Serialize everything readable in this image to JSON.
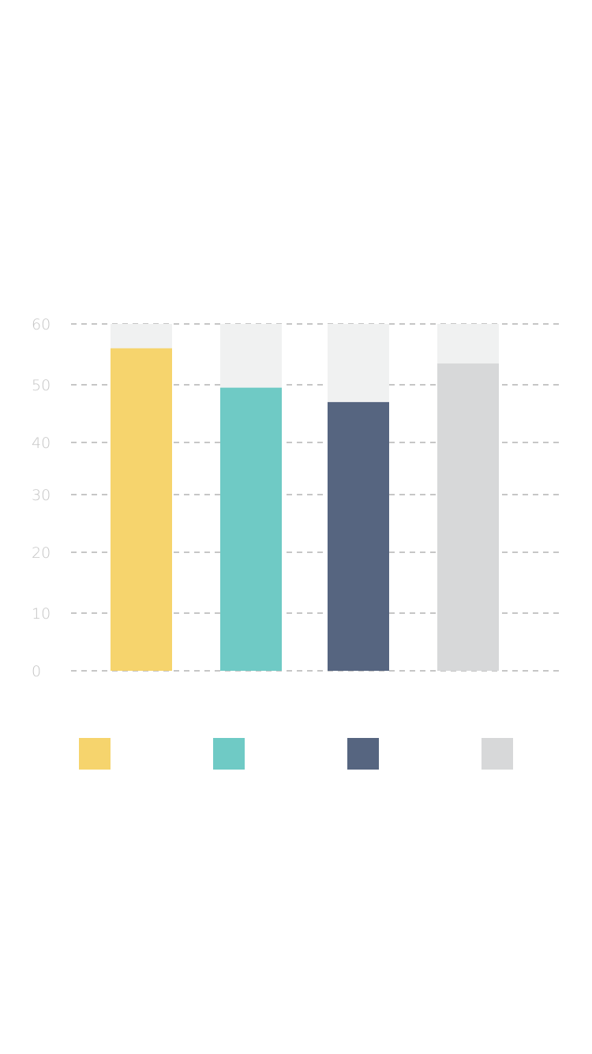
{
  "chart_data": {
    "type": "bar",
    "categories": [
      "",
      "",
      "",
      ""
    ],
    "values": [
      56,
      49.5,
      47,
      53.5
    ],
    "max_value": 60,
    "colors": [
      "#f6d46d",
      "#6fcac5",
      "#566580",
      "#d7d8d9"
    ],
    "track_color": "#f0f1f1",
    "grid_color": "#b3b3b3",
    "yticks": [
      "0",
      "10",
      "20",
      "30",
      "40",
      "50",
      "60"
    ],
    "ylim": [
      0,
      60
    ],
    "grid": true,
    "legend": "bottom",
    "title": "",
    "xlabel": "",
    "ylabel": ""
  }
}
